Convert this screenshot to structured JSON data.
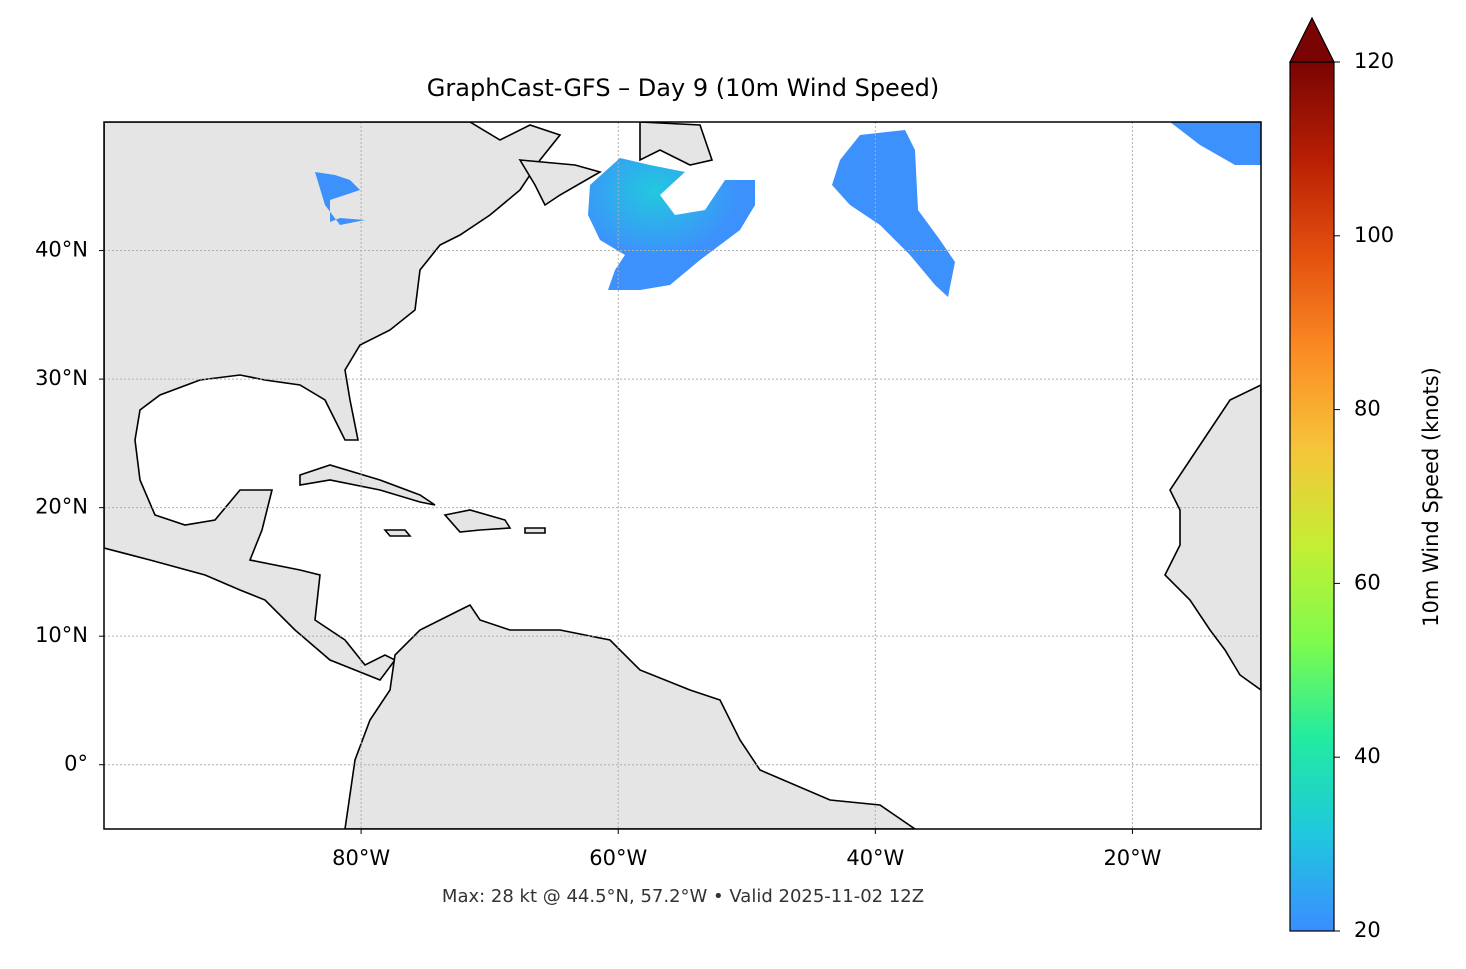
{
  "chart_data": {
    "type": "map",
    "title": "GraphCast-GFS – Day 9 (10m Wind Speed)",
    "footer": "Max: 28 kt @ 44.5°N, 57.2°W • Valid 2025-11-02 12Z",
    "xlim": [
      -100,
      -10
    ],
    "ylim": [
      -5,
      50
    ],
    "xticks": [
      {
        "value": -80,
        "label": "80°W"
      },
      {
        "value": -60,
        "label": "60°W"
      },
      {
        "value": -40,
        "label": "40°W"
      },
      {
        "value": -20,
        "label": "20°W"
      }
    ],
    "yticks": [
      {
        "value": 0,
        "label": "0°"
      },
      {
        "value": 10,
        "label": "10°N"
      },
      {
        "value": 20,
        "label": "20°N"
      },
      {
        "value": 30,
        "label": "30°N"
      },
      {
        "value": 40,
        "label": "40°N"
      }
    ],
    "grid": true,
    "colorbar": {
      "label": "10m Wind Speed (knots)",
      "lim": [
        20,
        120
      ],
      "ticks": [
        20,
        40,
        60,
        80,
        100,
        120
      ],
      "colormap": [
        "#3b8dff",
        "#1fc8de",
        "#22eba0",
        "#7ffb4c",
        "#c5ee34",
        "#f6c43a",
        "#fb8c24",
        "#e4500f",
        "#b71f04",
        "#7a0403"
      ]
    }
  }
}
